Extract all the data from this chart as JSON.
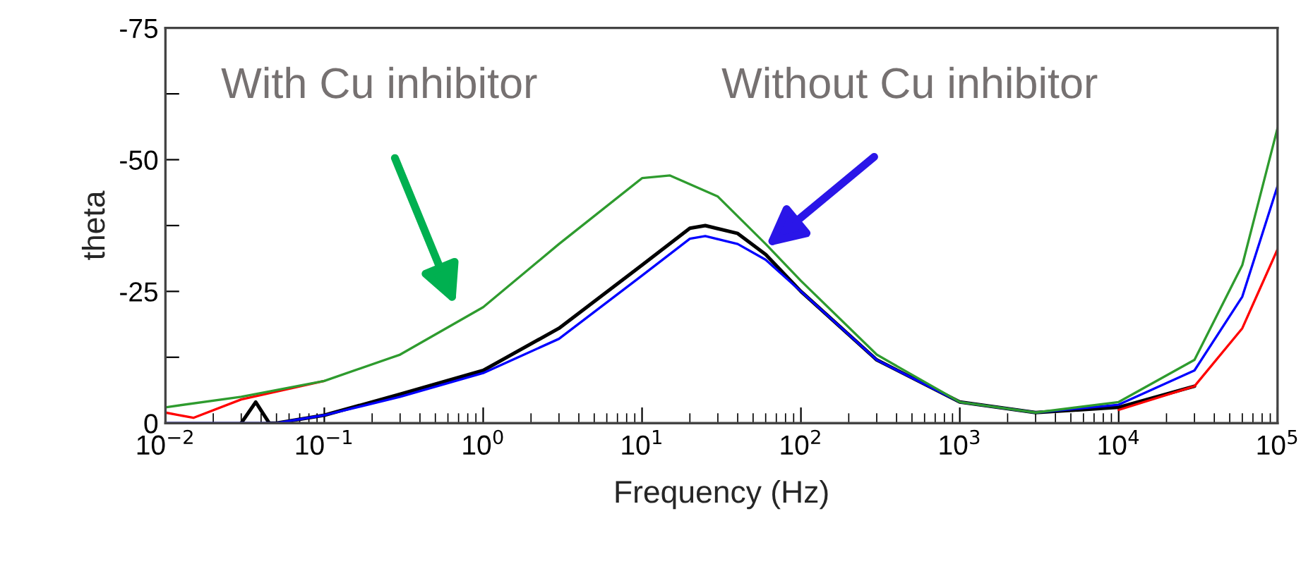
{
  "chart_data": {
    "type": "line",
    "xlabel": "Frequency (Hz)",
    "ylabel": "theta",
    "log": "x",
    "xlim": [
      0.01,
      100000
    ],
    "ylim": [
      0,
      -75
    ],
    "xticks": [
      {
        "value": 0.01,
        "label": "10$^{−2}$"
      },
      {
        "value": 0.1,
        "label": "10$^{−1}$"
      },
      {
        "value": 1,
        "label": "10$^{0}$"
      },
      {
        "value": 10,
        "label": "10$^{1}$"
      },
      {
        "value": 100,
        "label": "10$^{2}$"
      },
      {
        "value": 1000,
        "label": "10$^{3}$"
      },
      {
        "value": 10000,
        "label": "10$^{4}$"
      },
      {
        "value": 100000,
        "label": "10$^{5}$"
      }
    ],
    "yticks": [
      0,
      {
        "value": -12.5,
        "label": null
      },
      -25,
      {
        "value": -37.5,
        "label": null
      },
      -50,
      {
        "value": -62.5,
        "label": null
      },
      -75
    ],
    "grid": false,
    "legend": false,
    "marker": "none",
    "line_style": "solid",
    "series": [
      {
        "color": "#000000",
        "x": [
          0.03,
          0.037,
          0.045,
          0.05,
          0.1,
          0.3,
          1,
          3,
          10,
          20,
          25,
          40,
          60,
          100,
          300,
          1000,
          3000,
          10000,
          30000
        ],
        "values": [
          0,
          -4,
          0,
          0,
          -1.5,
          -5.5,
          -10,
          -18,
          -30,
          -37,
          -37.5,
          -36,
          -32,
          -25,
          -12,
          -4,
          -2,
          -3,
          -7
        ]
      },
      {
        "color": "#0000ff",
        "x": [
          0.01,
          0.05,
          0.1,
          0.3,
          1,
          3,
          10,
          20,
          25,
          40,
          60,
          100,
          300,
          1000,
          3000,
          10000,
          30000,
          60000,
          100000
        ],
        "values": [
          0,
          0,
          -1.5,
          -5,
          -9.5,
          -16,
          -28,
          -35,
          -35.5,
          -34,
          -31,
          -25,
          -12,
          -4,
          -2,
          -3.5,
          -10,
          -24,
          -45
        ]
      },
      {
        "color": "#ff0000",
        "x": [
          0.01,
          0.015,
          0.03,
          0.1,
          0.3,
          1,
          3,
          10,
          15,
          30,
          60,
          100,
          300,
          1000,
          3000,
          10000,
          30000,
          60000,
          100000
        ],
        "values": [
          -2,
          -1,
          -4.5,
          -8,
          null,
          null,
          null,
          null,
          null,
          null,
          null,
          null,
          null,
          null,
          null,
          -2.5,
          -7,
          -18,
          -33
        ]
      },
      {
        "color": "#2e9b2e",
        "x": [
          0.01,
          0.03,
          0.1,
          0.3,
          1,
          3,
          10,
          15,
          30,
          60,
          100,
          300,
          1000,
          3000,
          10000,
          30000,
          60000,
          100000
        ],
        "values": [
          -3,
          -5,
          -8,
          -13,
          -22,
          -34,
          -46.5,
          -47,
          -43,
          -34,
          -27,
          -13,
          -4,
          -2,
          -4,
          -12,
          -30,
          -56
        ]
      }
    ],
    "annotations": [
      "With Cu inhibitor",
      "Without Cu inhibitor"
    ]
  }
}
